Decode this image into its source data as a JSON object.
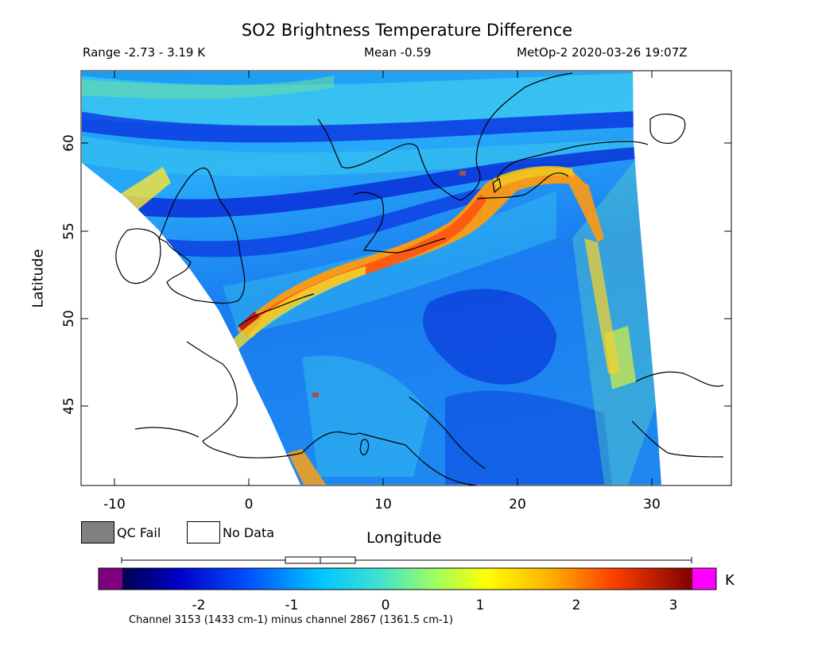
{
  "title": "SO2 Brightness Temperature Difference",
  "stats": {
    "range": "Range -2.73 - 3.19 K",
    "mean": "Mean -0.59",
    "satellite_time": "MetOp-2 2020-03-26 19:07Z"
  },
  "axes": {
    "xlabel": "Longitude",
    "ylabel": "Latitude",
    "x_ticks": [
      "-10",
      "0",
      "10",
      "20",
      "30"
    ],
    "y_ticks": [
      "60",
      "55",
      "50",
      "45"
    ]
  },
  "legend": {
    "qc_fail": "QC Fail",
    "no_data": "No Data"
  },
  "colorbar": {
    "unit": "K",
    "ticks": [
      "-2",
      "-1",
      "0",
      "1",
      "2",
      "3"
    ],
    "footnote": "Channel 3153 (1433 cm-1) minus channel 2867 (1361.5 cm-1)"
  },
  "colors": {
    "qc_fail": "#808080",
    "no_data": "#ffffff",
    "under_range": "#800080",
    "over_range": "#ff00ff",
    "coastline": "#000000"
  },
  "chart_data": {
    "type": "heatmap",
    "variable": "SO2 Brightness Temperature Difference",
    "units": "K",
    "xlim": [
      -12.5,
      35.5
    ],
    "ylim": [
      40.3,
      64
    ],
    "color_range": [
      -2.73,
      3.19
    ],
    "mean": -0.59,
    "boxplot_summary": {
      "min": -2.73,
      "q1": -1.05,
      "median": -0.68,
      "q3": -0.32,
      "max": 3.19
    }
  }
}
